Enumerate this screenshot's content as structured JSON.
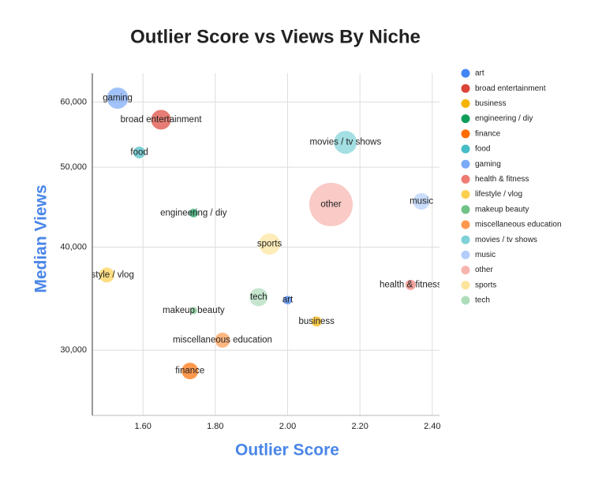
{
  "chart_data": {
    "type": "bubble",
    "title": "Outlier Score vs Views  By Niche",
    "x_label": "Outlier Score",
    "y_label": "Median Views",
    "xlim": [
      1.46,
      2.42
    ],
    "xticks": [
      {
        "value": 1.6,
        "label": "1.60"
      },
      {
        "value": 1.8,
        "label": "1.80"
      },
      {
        "value": 2.0,
        "label": "2.00"
      },
      {
        "value": 2.2,
        "label": "2.20"
      },
      {
        "value": 2.4,
        "label": "2.40"
      }
    ],
    "ylim": [
      25000,
      65000
    ],
    "y_log": true,
    "yticks": [
      {
        "value": 30000,
        "label": "30,000"
      },
      {
        "value": 40000,
        "label": "40,000"
      },
      {
        "value": 50000,
        "label": "50,000"
      },
      {
        "value": 60000,
        "label": "60,000"
      }
    ],
    "grid": true,
    "legend": "right",
    "series": [
      {
        "name": "art",
        "color": "#4285f4",
        "x": [
          2.0
        ],
        "values": [
          34500
        ],
        "sizes": [
          36
        ]
      },
      {
        "name": "broad entertainment",
        "color": "#db4437",
        "x": [
          1.65
        ],
        "values": [
          57100
        ],
        "sizes": [
          169
        ]
      },
      {
        "name": "business",
        "color": "#f4b400",
        "x": [
          2.08
        ],
        "values": [
          32500
        ],
        "sizes": [
          49
        ]
      },
      {
        "name": "engineering / diy",
        "color": "#0f9d58",
        "x": [
          1.74
        ],
        "values": [
          44000
        ],
        "sizes": [
          36
        ]
      },
      {
        "name": "finance",
        "color": "#ff6d01",
        "x": [
          1.73
        ],
        "values": [
          28300
        ],
        "sizes": [
          121
        ]
      },
      {
        "name": "food",
        "color": "#46bdc6",
        "x": [
          1.59
        ],
        "values": [
          52100
        ],
        "sizes": [
          64
        ]
      },
      {
        "name": "gaming",
        "color": "#7baaf7",
        "x": [
          1.53
        ],
        "values": [
          60650
        ],
        "sizes": [
          196
        ]
      },
      {
        "name": "health & fitness",
        "color": "#f07b72",
        "x": [
          2.34
        ],
        "values": [
          36000
        ],
        "sizes": [
          49
        ]
      },
      {
        "name": "lifestyle / vlog",
        "color": "#fcd04f",
        "x": [
          1.5
        ],
        "values": [
          37000
        ],
        "sizes": [
          100
        ]
      },
      {
        "name": "makeup beauty",
        "color": "#71c287",
        "x": [
          1.74
        ],
        "values": [
          33500
        ],
        "sizes": [
          25
        ]
      },
      {
        "name": "miscellaneous education",
        "color": "#ff994d",
        "x": [
          1.82
        ],
        "values": [
          30850
        ],
        "sizes": [
          100
        ]
      },
      {
        "name": "movies / tv shows",
        "color": "#7ed1d7",
        "x": [
          2.16
        ],
        "values": [
          53600
        ],
        "sizes": [
          225
        ]
      },
      {
        "name": "music",
        "color": "#b3cefb",
        "x": [
          2.37
        ],
        "values": [
          45450
        ],
        "sizes": [
          121
        ]
      },
      {
        "name": "other",
        "color": "#f7b4ae",
        "x": [
          2.12
        ],
        "values": [
          45050
        ],
        "sizes": [
          784
        ]
      },
      {
        "name": "sports",
        "color": "#fde49b",
        "x": [
          1.95
        ],
        "values": [
          40350
        ],
        "sizes": [
          196
        ]
      },
      {
        "name": "tech",
        "color": "#aedcba",
        "x": [
          1.92
        ],
        "values": [
          34780
        ],
        "sizes": [
          144
        ]
      }
    ]
  }
}
